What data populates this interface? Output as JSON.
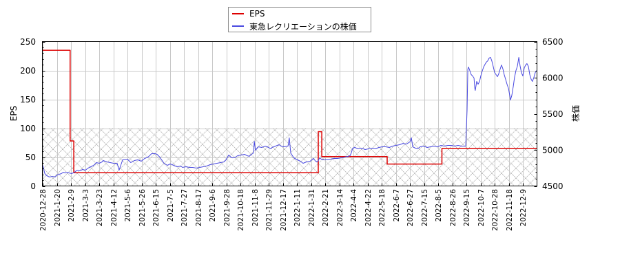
{
  "legend": {
    "items": [
      {
        "label": "EPS",
        "color": "#dd0000"
      },
      {
        "label": "東急レクリエーションの株価",
        "color": "#4848e0"
      }
    ]
  },
  "axes": {
    "left_label": "EPS",
    "right_label": "株価"
  },
  "chart_data": {
    "type": "line",
    "title": "",
    "xlabel": "",
    "ylabel": "EPS",
    "y2label": "株価",
    "ylim": [
      0,
      250
    ],
    "y2lim": [
      4500,
      6500
    ],
    "yticks": [
      0,
      50,
      100,
      150,
      200,
      250
    ],
    "y2ticks": [
      4500,
      5000,
      5500,
      6000,
      6500
    ],
    "grid": true,
    "legend_position": "top-center",
    "hatch_band": {
      "axis": "left",
      "from": 0,
      "to": 100
    },
    "x_unit": "tick_index (0 = first category, fractional positions between ticks)",
    "categories": [
      "2020-12-28",
      "2021-1-20",
      "2021-2-9",
      "2021-3-3",
      "2021-3-23",
      "2021-4-12",
      "2021-5-6",
      "2021-5-26",
      "2021-6-15",
      "2021-7-5",
      "2021-7-27",
      "2021-8-17",
      "2021-9-6",
      "2021-9-28",
      "2021-10-18",
      "2021-11-8",
      "2021-11-29",
      "2021-12-17",
      "2022-1-11",
      "2022-1-31",
      "2022-2-21",
      "2022-3-14",
      "2022-4-4",
      "2022-4-22",
      "2022-5-18",
      "2022-6-7",
      "2022-6-27",
      "2022-7-15",
      "2022-8-5",
      "2022-8-26",
      "2022-9-15",
      "2022-10-7",
      "2022-10-28",
      "2022-11-18",
      "2022-12-9"
    ],
    "series": [
      {
        "name": "EPS",
        "axis": "left",
        "color": "#dd0000",
        "step": true,
        "points": [
          [
            0,
            235
          ],
          [
            1.94,
            235
          ],
          [
            1.94,
            78
          ],
          [
            2.2,
            78
          ],
          [
            2.2,
            23
          ],
          [
            19.51,
            23
          ],
          [
            19.51,
            94
          ],
          [
            19.76,
            94
          ],
          [
            19.76,
            51
          ],
          [
            24.39,
            51
          ],
          [
            24.39,
            38
          ],
          [
            28.27,
            38
          ],
          [
            28.27,
            65
          ],
          [
            34.98,
            65
          ]
        ]
      },
      {
        "name": "東急レクリエーションの株価",
        "axis": "right",
        "color": "#4848e0",
        "step": false,
        "points": [
          [
            0,
            4786
          ],
          [
            0.05,
            4757
          ],
          [
            0.1,
            4710
          ],
          [
            0.15,
            4671
          ],
          [
            0.29,
            4643
          ],
          [
            0.49,
            4624
          ],
          [
            0.68,
            4633
          ],
          [
            0.88,
            4624
          ],
          [
            1.02,
            4652
          ],
          [
            1.17,
            4662
          ],
          [
            1.32,
            4671
          ],
          [
            1.46,
            4690
          ],
          [
            1.61,
            4681
          ],
          [
            1.76,
            4690
          ],
          [
            1.85,
            4681
          ],
          [
            2.05,
            4671
          ],
          [
            2.24,
            4690
          ],
          [
            2.44,
            4719
          ],
          [
            2.63,
            4710
          ],
          [
            2.83,
            4729
          ],
          [
            3.02,
            4719
          ],
          [
            3.22,
            4748
          ],
          [
            3.41,
            4767
          ],
          [
            3.61,
            4786
          ],
          [
            3.8,
            4824
          ],
          [
            4.0,
            4814
          ],
          [
            4.2,
            4833
          ],
          [
            4.29,
            4852
          ],
          [
            4.54,
            4833
          ],
          [
            4.78,
            4824
          ],
          [
            5.02,
            4814
          ],
          [
            5.27,
            4814
          ],
          [
            5.41,
            4719
          ],
          [
            5.56,
            4805
          ],
          [
            5.66,
            4862
          ],
          [
            6.0,
            4871
          ],
          [
            6.24,
            4824
          ],
          [
            6.49,
            4852
          ],
          [
            6.73,
            4862
          ],
          [
            6.98,
            4843
          ],
          [
            7.22,
            4881
          ],
          [
            7.46,
            4900
          ],
          [
            7.71,
            4948
          ],
          [
            7.95,
            4948
          ],
          [
            8.1,
            4938
          ],
          [
            8.29,
            4900
          ],
          [
            8.49,
            4843
          ],
          [
            8.59,
            4814
          ],
          [
            8.83,
            4786
          ],
          [
            9.02,
            4805
          ],
          [
            9.17,
            4795
          ],
          [
            9.37,
            4776
          ],
          [
            9.56,
            4767
          ],
          [
            9.76,
            4776
          ],
          [
            9.9,
            4757
          ],
          [
            10.15,
            4767
          ],
          [
            10.39,
            4757
          ],
          [
            10.63,
            4757
          ],
          [
            10.88,
            4748
          ],
          [
            11.12,
            4757
          ],
          [
            11.37,
            4767
          ],
          [
            11.61,
            4776
          ],
          [
            11.85,
            4795
          ],
          [
            12.1,
            4805
          ],
          [
            12.34,
            4814
          ],
          [
            12.59,
            4824
          ],
          [
            12.83,
            4833
          ],
          [
            12.98,
            4862
          ],
          [
            13.17,
            4929
          ],
          [
            13.32,
            4900
          ],
          [
            13.46,
            4890
          ],
          [
            13.66,
            4900
          ],
          [
            13.8,
            4919
          ],
          [
            14.05,
            4929
          ],
          [
            14.29,
            4938
          ],
          [
            14.49,
            4919
          ],
          [
            14.63,
            4910
          ],
          [
            14.78,
            4938
          ],
          [
            14.93,
            4957
          ],
          [
            14.98,
            5119
          ],
          [
            15.07,
            4995
          ],
          [
            15.27,
            5043
          ],
          [
            15.51,
            5033
          ],
          [
            15.76,
            5052
          ],
          [
            16.0,
            5033
          ],
          [
            16.15,
            5014
          ],
          [
            16.24,
            5033
          ],
          [
            16.49,
            5052
          ],
          [
            16.73,
            5071
          ],
          [
            16.88,
            5052
          ],
          [
            17.07,
            5043
          ],
          [
            17.37,
            5052
          ],
          [
            17.46,
            5167
          ],
          [
            17.56,
            4957
          ],
          [
            17.71,
            4910
          ],
          [
            17.85,
            4881
          ],
          [
            18.05,
            4862
          ],
          [
            18.24,
            4843
          ],
          [
            18.44,
            4814
          ],
          [
            18.68,
            4833
          ],
          [
            18.93,
            4843
          ],
          [
            19.17,
            4881
          ],
          [
            19.32,
            4843
          ],
          [
            19.46,
            4833
          ],
          [
            19.61,
            4890
          ],
          [
            19.8,
            4862
          ],
          [
            20.15,
            4862
          ],
          [
            20.39,
            4871
          ],
          [
            20.63,
            4881
          ],
          [
            20.88,
            4881
          ],
          [
            21.12,
            4890
          ],
          [
            21.37,
            4900
          ],
          [
            21.61,
            4910
          ],
          [
            21.76,
            4919
          ],
          [
            21.85,
            4957
          ],
          [
            21.95,
            5024
          ],
          [
            22.1,
            5033
          ],
          [
            22.34,
            5014
          ],
          [
            22.59,
            5024
          ],
          [
            22.83,
            5005
          ],
          [
            23.07,
            5014
          ],
          [
            23.32,
            5024
          ],
          [
            23.56,
            5014
          ],
          [
            23.8,
            5033
          ],
          [
            24.05,
            5043
          ],
          [
            24.29,
            5043
          ],
          [
            24.54,
            5033
          ],
          [
            24.78,
            5052
          ],
          [
            25.02,
            5062
          ],
          [
            25.27,
            5071
          ],
          [
            25.51,
            5090
          ],
          [
            25.76,
            5081
          ],
          [
            26.0,
            5110
          ],
          [
            26.1,
            5167
          ],
          [
            26.2,
            5043
          ],
          [
            26.39,
            5024
          ],
          [
            26.54,
            5014
          ],
          [
            26.73,
            5043
          ],
          [
            26.98,
            5052
          ],
          [
            27.22,
            5033
          ],
          [
            27.46,
            5043
          ],
          [
            27.71,
            5052
          ],
          [
            27.95,
            5043
          ],
          [
            28.2,
            5062
          ],
          [
            28.44,
            5052
          ],
          [
            28.68,
            5062
          ],
          [
            28.93,
            5062
          ],
          [
            29.17,
            5052
          ],
          [
            29.41,
            5062
          ],
          [
            29.66,
            5052
          ],
          [
            29.95,
            5052
          ],
          [
            30.05,
            5548
          ],
          [
            30.1,
            6119
          ],
          [
            30.15,
            6148
          ],
          [
            30.24,
            6100
          ],
          [
            30.34,
            6043
          ],
          [
            30.44,
            6024
          ],
          [
            30.54,
            5995
          ],
          [
            30.59,
            5862
          ],
          [
            30.63,
            5824
          ],
          [
            30.73,
            5948
          ],
          [
            30.83,
            5910
          ],
          [
            30.93,
            5948
          ],
          [
            31.02,
            6024
          ],
          [
            31.12,
            6090
          ],
          [
            31.22,
            6148
          ],
          [
            31.32,
            6186
          ],
          [
            31.41,
            6214
          ],
          [
            31.51,
            6233
          ],
          [
            31.61,
            6271
          ],
          [
            31.71,
            6281
          ],
          [
            31.8,
            6233
          ],
          [
            31.9,
            6157
          ],
          [
            32.0,
            6071
          ],
          [
            32.1,
            6043
          ],
          [
            32.2,
            6014
          ],
          [
            32.29,
            6052
          ],
          [
            32.39,
            6119
          ],
          [
            32.49,
            6176
          ],
          [
            32.59,
            6119
          ],
          [
            32.68,
            6043
          ],
          [
            32.78,
            5976
          ],
          [
            32.88,
            5910
          ],
          [
            32.98,
            5852
          ],
          [
            33.07,
            5757
          ],
          [
            33.12,
            5690
          ],
          [
            33.22,
            5757
          ],
          [
            33.32,
            5881
          ],
          [
            33.41,
            6005
          ],
          [
            33.51,
            6100
          ],
          [
            33.61,
            6157
          ],
          [
            33.71,
            6281
          ],
          [
            33.8,
            6167
          ],
          [
            33.9,
            6071
          ],
          [
            34.0,
            6024
          ],
          [
            34.1,
            6138
          ],
          [
            34.2,
            6176
          ],
          [
            34.29,
            6195
          ],
          [
            34.39,
            6157
          ],
          [
            34.49,
            6043
          ],
          [
            34.59,
            5976
          ],
          [
            34.68,
            5948
          ],
          [
            34.78,
            6005
          ],
          [
            34.88,
            6071
          ],
          [
            34.98,
            6100
          ]
        ]
      }
    ]
  }
}
